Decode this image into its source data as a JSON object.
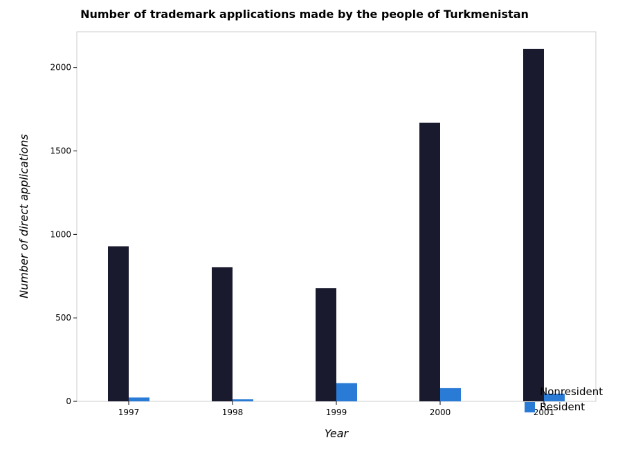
{
  "chart_data": {
    "type": "bar",
    "title": "Number of trademark applications made by the people of Turkmenistan",
    "xlabel": "Year",
    "ylabel": "Number of direct applications",
    "categories": [
      "1997",
      "1998",
      "1999",
      "2000",
      "2001"
    ],
    "series": [
      {
        "name": "Nonresident",
        "color": "#1a1a2e",
        "values": [
          929,
          803,
          678,
          1669,
          2111
        ]
      },
      {
        "name": "Resident",
        "color": "#2a7bd5",
        "values": [
          23,
          12,
          109,
          79,
          46
        ]
      }
    ],
    "ylim": [
      0,
      2214
    ],
    "yticks": [
      0,
      500,
      1000,
      1500,
      2000
    ],
    "grid": false,
    "legend_position": "bottom-right"
  }
}
